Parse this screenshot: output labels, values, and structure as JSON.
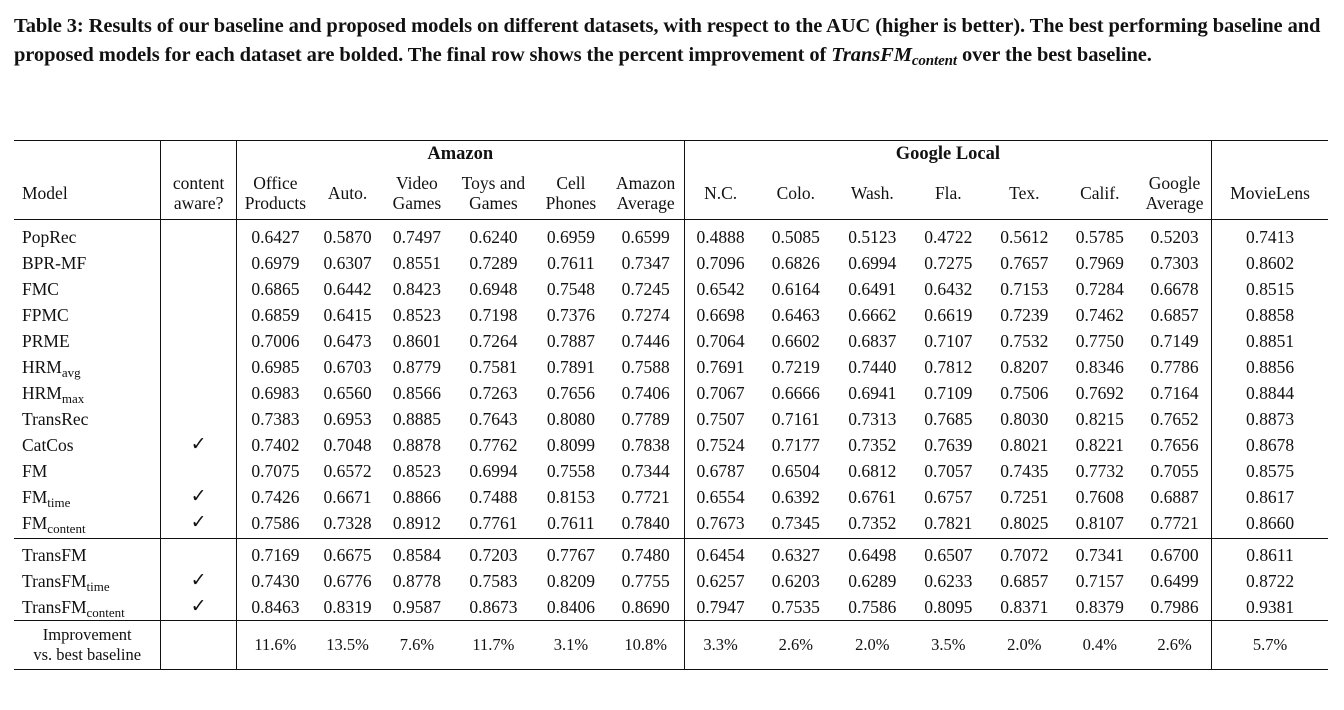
{
  "caption": {
    "part1": "Table 3: Results of our baseline and proposed models on different datasets, with respect to the AUC (higher is better). The best performing baseline and proposed models for each dataset are bolded. The final row shows the percent improvement of ",
    "model_name": "TransFM",
    "model_sub": "content",
    "part2": " over the best baseline."
  },
  "header": {
    "group_amazon": "Amazon",
    "group_google": "Google Local",
    "model_label": "Model",
    "content_aware_l1": "content",
    "content_aware_l2": "aware?",
    "columns": [
      {
        "l1": "Office",
        "l2": "Products"
      },
      {
        "l1": "Auto.",
        "l2": ""
      },
      {
        "l1": "Video",
        "l2": "Games"
      },
      {
        "l1": "Toys and",
        "l2": "Games"
      },
      {
        "l1": "Cell",
        "l2": "Phones"
      },
      {
        "l1": "Amazon",
        "l2": "Average"
      },
      {
        "l1": "N.C.",
        "l2": ""
      },
      {
        "l1": "Colo.",
        "l2": ""
      },
      {
        "l1": "Wash.",
        "l2": ""
      },
      {
        "l1": "Fla.",
        "l2": ""
      },
      {
        "l1": "Tex.",
        "l2": ""
      },
      {
        "l1": "Calif.",
        "l2": ""
      },
      {
        "l1": "Google",
        "l2": "Average"
      },
      {
        "l1": "MovieLens",
        "l2": ""
      }
    ]
  },
  "baselines": [
    {
      "model": "PopRec",
      "sub": "",
      "aware": "",
      "values": [
        "0.6427",
        "0.5870",
        "0.7497",
        "0.6240",
        "0.6959",
        "0.6599",
        "0.4888",
        "0.5085",
        "0.5123",
        "0.4722",
        "0.5612",
        "0.5785",
        "0.5203",
        "0.7413"
      ],
      "bold": []
    },
    {
      "model": "BPR-MF",
      "sub": "",
      "aware": "",
      "values": [
        "0.6979",
        "0.6307",
        "0.8551",
        "0.7289",
        "0.7611",
        "0.7347",
        "0.7096",
        "0.6826",
        "0.6994",
        "0.7275",
        "0.7657",
        "0.7969",
        "0.7303",
        "0.8602"
      ],
      "bold": []
    },
    {
      "model": "FMC",
      "sub": "",
      "aware": "",
      "values": [
        "0.6865",
        "0.6442",
        "0.8423",
        "0.6948",
        "0.7548",
        "0.7245",
        "0.6542",
        "0.6164",
        "0.6491",
        "0.6432",
        "0.7153",
        "0.7284",
        "0.6678",
        "0.8515"
      ],
      "bold": []
    },
    {
      "model": "FPMC",
      "sub": "",
      "aware": "",
      "values": [
        "0.6859",
        "0.6415",
        "0.8523",
        "0.7198",
        "0.7376",
        "0.7274",
        "0.6698",
        "0.6463",
        "0.6662",
        "0.6619",
        "0.7239",
        "0.7462",
        "0.6857",
        "0.8858"
      ],
      "bold": []
    },
    {
      "model": "PRME",
      "sub": "",
      "aware": "",
      "values": [
        "0.7006",
        "0.6473",
        "0.8601",
        "0.7264",
        "0.7887",
        "0.7446",
        "0.7064",
        "0.6602",
        "0.6837",
        "0.7107",
        "0.7532",
        "0.7750",
        "0.7149",
        "0.8851"
      ],
      "bold": []
    },
    {
      "model": "HRM",
      "sub": "avg",
      "aware": "",
      "values": [
        "0.6985",
        "0.6703",
        "0.8779",
        "0.7581",
        "0.7891",
        "0.7588",
        "0.7691",
        "0.7219",
        "0.7440",
        "0.7812",
        "0.8207",
        "0.8346",
        "0.7786",
        "0.8856"
      ],
      "bold": [
        6,
        8,
        10,
        11,
        12
      ]
    },
    {
      "model": "HRM",
      "sub": "max",
      "aware": "",
      "values": [
        "0.6983",
        "0.6560",
        "0.8566",
        "0.7263",
        "0.7656",
        "0.7406",
        "0.7067",
        "0.6666",
        "0.6941",
        "0.7109",
        "0.7506",
        "0.7692",
        "0.7164",
        "0.8844"
      ],
      "bold": []
    },
    {
      "model": "TransRec",
      "sub": "",
      "aware": "",
      "values": [
        "0.7383",
        "0.6953",
        "0.8885",
        "0.7643",
        "0.8080",
        "0.7789",
        "0.7507",
        "0.7161",
        "0.7313",
        "0.7685",
        "0.8030",
        "0.8215",
        "0.7652",
        "0.8873"
      ],
      "bold": [
        13
      ]
    },
    {
      "model": "CatCos",
      "sub": "",
      "aware": "✓",
      "values": [
        "0.7402",
        "0.7048",
        "0.8878",
        "0.7762",
        "0.8099",
        "0.7838",
        "0.7524",
        "0.7177",
        "0.7352",
        "0.7639",
        "0.8021",
        "0.8221",
        "0.7656",
        "0.8678"
      ],
      "bold": [
        3
      ]
    },
    {
      "model": "FM",
      "sub": "",
      "aware": "",
      "values": [
        "0.7075",
        "0.6572",
        "0.8523",
        "0.6994",
        "0.7558",
        "0.7344",
        "0.6787",
        "0.6504",
        "0.6812",
        "0.7057",
        "0.7435",
        "0.7732",
        "0.7055",
        "0.8575"
      ],
      "bold": []
    },
    {
      "model": "FM",
      "sub": "time",
      "aware": "✓",
      "values": [
        "0.7426",
        "0.6671",
        "0.8866",
        "0.7488",
        "0.8153",
        "0.7721",
        "0.6554",
        "0.6392",
        "0.6761",
        "0.6757",
        "0.7251",
        "0.7608",
        "0.6887",
        "0.8617"
      ],
      "bold": [
        4
      ]
    },
    {
      "model": "FM",
      "sub": "content",
      "aware": "✓",
      "values": [
        "0.7586",
        "0.7328",
        "0.8912",
        "0.7761",
        "0.7611",
        "0.7840",
        "0.7673",
        "0.7345",
        "0.7352",
        "0.7821",
        "0.8025",
        "0.8107",
        "0.7721",
        "0.8660"
      ],
      "bold": [
        0,
        1,
        2,
        5,
        7,
        9
      ]
    }
  ],
  "proposed": [
    {
      "model": "TransFM",
      "sub": "",
      "aware": "",
      "values": [
        "0.7169",
        "0.6675",
        "0.8584",
        "0.7203",
        "0.7767",
        "0.7480",
        "0.6454",
        "0.6327",
        "0.6498",
        "0.6507",
        "0.7072",
        "0.7341",
        "0.6700",
        "0.8611"
      ],
      "bold": []
    },
    {
      "model": "TransFM",
      "sub": "time",
      "aware": "✓",
      "values": [
        "0.7430",
        "0.6776",
        "0.8778",
        "0.7583",
        "0.8209",
        "0.7755",
        "0.6257",
        "0.6203",
        "0.6289",
        "0.6233",
        "0.6857",
        "0.7157",
        "0.6499",
        "0.8722"
      ],
      "bold": []
    },
    {
      "model": "TransFM",
      "sub": "content",
      "aware": "✓",
      "values": [
        "0.8463",
        "0.8319",
        "0.9587",
        "0.8673",
        "0.8406",
        "0.8690",
        "0.7947",
        "0.7535",
        "0.7586",
        "0.8095",
        "0.8371",
        "0.8379",
        "0.7986",
        "0.9381"
      ],
      "bold": [
        0,
        1,
        2,
        3,
        4,
        5,
        6,
        7,
        8,
        9,
        10,
        11,
        12,
        13
      ]
    }
  ],
  "improvement": {
    "label_l1": "Improvement",
    "label_l2": "vs. best baseline",
    "values": [
      "11.6%",
      "13.5%",
      "7.6%",
      "11.7%",
      "3.1%",
      "10.8%",
      "3.3%",
      "2.6%",
      "2.0%",
      "3.5%",
      "2.0%",
      "0.4%",
      "2.6%",
      "5.7%"
    ]
  }
}
